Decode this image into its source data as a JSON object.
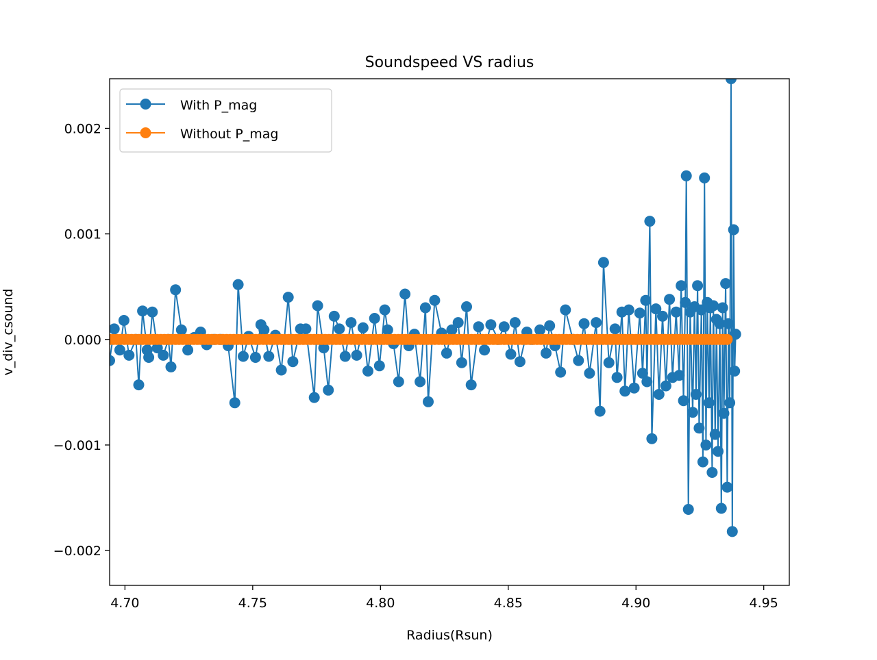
{
  "chart_data": {
    "type": "line",
    "title": "Soundspeed VS radius",
    "xlabel": "Radius(Rsun)",
    "ylabel": "v_div_csound",
    "xlim": [
      4.694,
      4.96
    ],
    "ylim": [
      -0.00233,
      0.00247
    ],
    "xticks": [
      4.7,
      4.75,
      4.8,
      4.85,
      4.9,
      4.95
    ],
    "xtick_labels": [
      "4.70",
      "4.75",
      "4.80",
      "4.85",
      "4.90",
      "4.95"
    ],
    "yticks": [
      -0.002,
      -0.001,
      0.0,
      0.001,
      0.002
    ],
    "ytick_labels": [
      "−0.002",
      "−0.001",
      "0.000",
      "0.001",
      "0.002"
    ],
    "grid": false,
    "legend_position": "upper-left",
    "series": [
      {
        "name": "With P_mag",
        "color": "#1f77b4",
        "marker": "circle",
        "x": [
          4.694,
          4.6958,
          4.698,
          4.6996,
          4.7016,
          4.7043,
          4.7054,
          4.7069,
          4.7087,
          4.7093,
          4.7107,
          4.7127,
          4.715,
          4.717,
          4.718,
          4.7198,
          4.7221,
          4.7246,
          4.7272,
          4.7296,
          4.732,
          4.7349,
          4.7374,
          4.7404,
          4.743,
          4.7443,
          4.7463,
          4.7484,
          4.7511,
          4.7532,
          4.7544,
          4.7563,
          4.7589,
          4.7612,
          4.7639,
          4.7657,
          4.7687,
          4.7708,
          4.7741,
          4.7754,
          4.7778,
          4.7796,
          4.7819,
          4.7839,
          4.7862,
          4.7885,
          4.7907,
          4.7932,
          4.7951,
          4.7977,
          4.7996,
          4.8017,
          4.8028,
          4.8051,
          4.8071,
          4.8096,
          4.8111,
          4.8133,
          4.8155,
          4.8176,
          4.8187,
          4.8212,
          4.8239,
          4.8259,
          4.8279,
          4.8304,
          4.8318,
          4.8337,
          4.8355,
          4.8384,
          4.8407,
          4.8432,
          4.8461,
          4.8484,
          4.851,
          4.8527,
          4.8546,
          4.8573,
          4.8592,
          4.8624,
          4.8648,
          4.8662,
          4.8683,
          4.8705,
          4.8724,
          4.8753,
          4.8775,
          4.8797,
          4.8818,
          4.8844,
          4.8859,
          4.8873,
          4.8894,
          4.8918,
          4.8926,
          4.8945,
          4.8957,
          4.8972,
          4.8993,
          4.9015,
          4.9026,
          4.9038,
          4.9043,
          4.9054,
          4.9062,
          4.9078,
          4.909,
          4.9104,
          4.9117,
          4.9131,
          4.9143,
          4.9157,
          4.9169,
          4.9177,
          4.9186,
          4.9193,
          4.9197,
          4.9205,
          4.9212,
          4.9222,
          4.9229,
          4.9235,
          4.9241,
          4.9247,
          4.9256,
          4.9262,
          4.9268,
          4.9274,
          4.9279,
          4.9286,
          4.9291,
          4.9298,
          4.9303,
          4.931,
          4.9315,
          4.9321,
          4.9328,
          4.9334,
          4.9339,
          4.9344,
          4.9351,
          4.9357,
          4.9362,
          4.9367,
          4.9372,
          4.9377,
          4.9382,
          4.9386,
          4.939
        ],
        "y": [
          -0.0002,
          0.0001,
          -0.0001,
          0.00018,
          -0.00015,
          0.0,
          -0.00043,
          0.00027,
          -0.0001,
          -0.00017,
          0.00026,
          -8e-05,
          -0.00015,
          0.0,
          -0.00026,
          0.00047,
          9e-05,
          -0.0001,
          2e-05,
          7e-05,
          -5e-05,
          0.0,
          0.0,
          -6e-05,
          -0.0006,
          0.00052,
          -0.00016,
          3e-05,
          -0.00017,
          0.00014,
          9e-05,
          -0.00016,
          4e-05,
          -0.00029,
          0.0004,
          -0.00021,
          0.0001,
          0.0001,
          -0.00055,
          0.00032,
          -8e-05,
          -0.00048,
          0.00022,
          0.0001,
          -0.00016,
          0.00016,
          -0.00015,
          0.00011,
          -0.0003,
          0.0002,
          -0.00025,
          0.00028,
          9e-05,
          -4e-05,
          -0.0004,
          0.00043,
          -6e-05,
          5e-05,
          -0.0004,
          0.0003,
          -0.00059,
          0.00037,
          6e-05,
          -0.00013,
          9e-05,
          0.00016,
          -0.00022,
          0.00031,
          -0.00043,
          0.00012,
          -0.0001,
          0.00014,
          0.0,
          0.00012,
          -0.00014,
          0.00016,
          -0.00021,
          7e-05,
          0.0,
          9e-05,
          -0.00013,
          0.00013,
          -6e-05,
          -0.00031,
          0.00028,
          0.0,
          -0.0002,
          0.00015,
          -0.00032,
          0.00016,
          -0.00068,
          0.00073,
          -0.00022,
          0.0001,
          -0.00036,
          0.00026,
          -0.00049,
          0.00028,
          -0.00046,
          0.00025,
          -0.00032,
          0.00037,
          -0.0004,
          0.00112,
          -0.00094,
          0.00029,
          -0.00052,
          0.00022,
          -0.00044,
          0.00038,
          -0.00036,
          0.00026,
          -0.00034,
          0.00051,
          -0.00058,
          0.00035,
          0.00155,
          -0.00161,
          0.00026,
          -0.00069,
          0.00031,
          -0.00052,
          0.00051,
          -0.00084,
          0.00028,
          -0.00116,
          0.00153,
          -0.001,
          0.00035,
          -0.0006,
          0.0003,
          -0.00126,
          0.00032,
          -0.0009,
          0.00019,
          -0.00106,
          0.00015,
          -0.0016,
          0.0003,
          -0.0007,
          0.00053,
          -0.0014,
          0.00015,
          -0.0006,
          0.00247,
          -0.00182,
          0.00104,
          -0.0003,
          5e-05
        ]
      },
      {
        "name": "Without P_mag",
        "color": "#ff7f0e",
        "marker": "circle",
        "x_start": 4.694,
        "x_end": 4.9357,
        "count": 170,
        "y_const": 0.0
      }
    ]
  }
}
